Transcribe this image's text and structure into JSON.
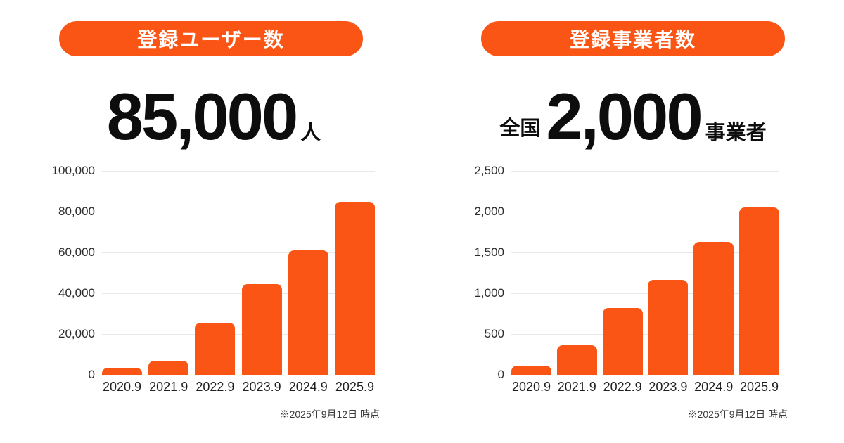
{
  "page": {
    "background": "#ffffff",
    "accent": "#FA5514",
    "text_color": "#0d0d0d"
  },
  "chart_data": [
    {
      "type": "bar",
      "title": "登録ユーザー数",
      "headline": {
        "prefix": "",
        "value": "85,000",
        "unit": "人"
      },
      "categories": [
        "2020.9",
        "2021.9",
        "2022.9",
        "2023.9",
        "2024.9",
        "2025.9"
      ],
      "values": [
        3500,
        6800,
        25500,
        44500,
        61000,
        85000
      ],
      "ylim": [
        0,
        100000
      ],
      "yticks": [
        {
          "label": "0",
          "value": 0
        },
        {
          "label": "20,000",
          "value": 20000
        },
        {
          "label": "40,000",
          "value": 40000
        },
        {
          "label": "60,000",
          "value": 60000
        },
        {
          "label": "80,000",
          "value": 80000
        },
        {
          "label": "100,000",
          "value": 100000
        }
      ],
      "xlabel": "",
      "ylabel": "",
      "grid": true,
      "legend": "none",
      "bar_color": "#FA5514",
      "note": "※2025年9月12日 時点"
    },
    {
      "type": "bar",
      "title": "登録事業者数",
      "headline": {
        "prefix": "全国",
        "value": "2,000",
        "unit": "事業者"
      },
      "categories": [
        "2020.9",
        "2021.9",
        "2022.9",
        "2023.9",
        "2024.9",
        "2025.9"
      ],
      "values": [
        110,
        360,
        820,
        1160,
        1630,
        2050
      ],
      "ylim": [
        0,
        2500
      ],
      "yticks": [
        {
          "label": "0",
          "value": 0
        },
        {
          "label": "500",
          "value": 500
        },
        {
          "label": "1,000",
          "value": 1000
        },
        {
          "label": "1,500",
          "value": 1500
        },
        {
          "label": "2,000",
          "value": 2000
        },
        {
          "label": "2,500",
          "value": 2500
        }
      ],
      "xlabel": "",
      "ylabel": "",
      "grid": true,
      "legend": "none",
      "bar_color": "#FA5514",
      "note": "※2025年9月12日 時点"
    }
  ]
}
